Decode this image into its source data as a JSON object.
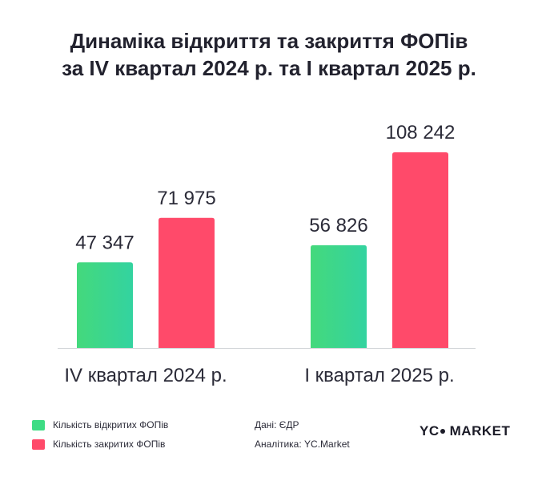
{
  "header": {
    "title_line1": "Динаміка відкриття та закриття ФОПів",
    "title_line2": "за IV квартал 2024 р. та І квартал 2025 р."
  },
  "chart_data": {
    "type": "bar",
    "categories": [
      "IV квартал 2024 р.",
      "І квартал 2025 р."
    ],
    "series": [
      {
        "name": "Кількість відкритих ФОПів",
        "values": [
          47347,
          56826
        ],
        "labels": [
          "47 347",
          "56 826"
        ],
        "color": "#3ddc84"
      },
      {
        "name": "Кількість закритих ФОПів",
        "values": [
          71975,
          108242
        ],
        "labels": [
          "71 975",
          "108 242"
        ],
        "color": "#ff4a6a"
      }
    ],
    "ylim": [
      0,
      108242
    ],
    "grid": false,
    "legend": "bottom-left"
  },
  "footer": {
    "source_label": "Дані: ЄДР",
    "analytics_label": "Аналітика: YC.Market",
    "brand_left": "YC",
    "brand_right": "MARKET"
  }
}
